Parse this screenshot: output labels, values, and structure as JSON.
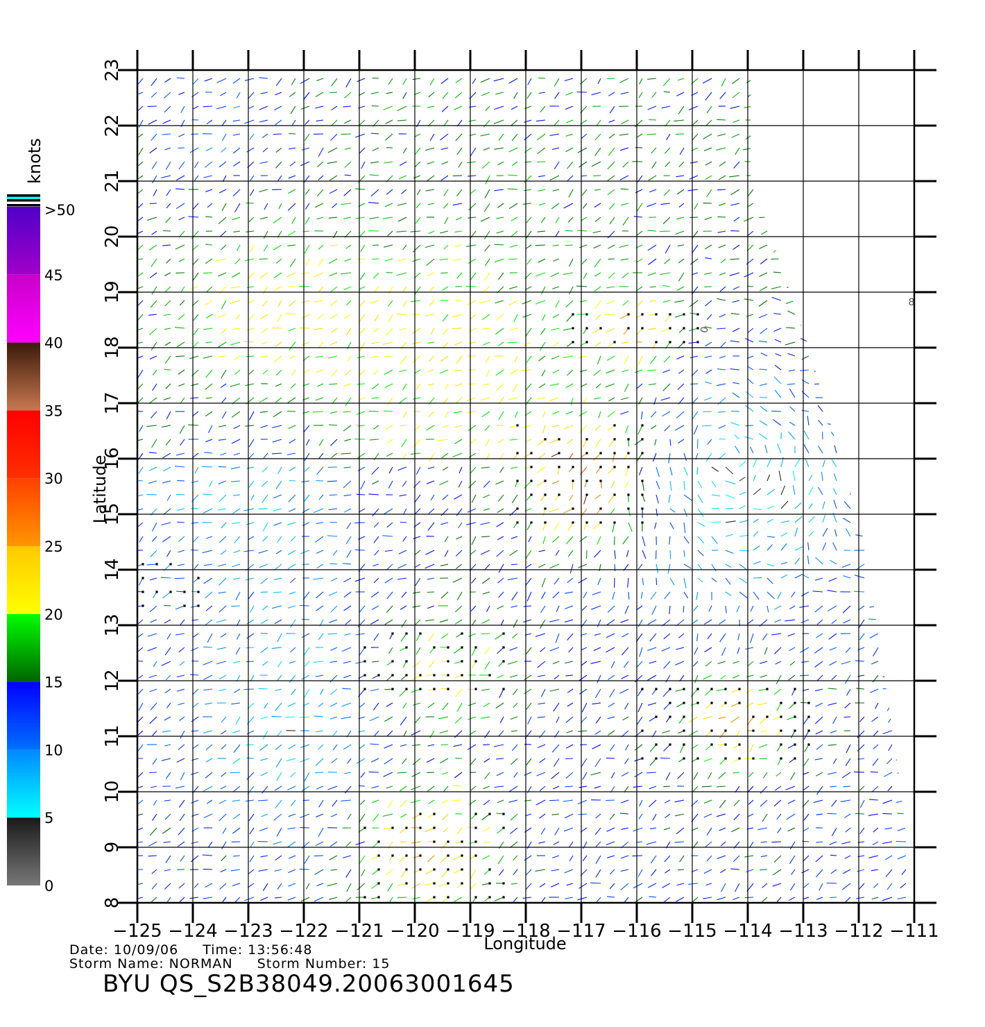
{
  "map": {
    "lon_range": [
      -125,
      -111
    ],
    "lat_range": [
      8,
      23
    ],
    "lon_ticks": [
      -125,
      -124,
      -123,
      -122,
      -121,
      -120,
      -119,
      -118,
      -117,
      -116,
      -115,
      -114,
      -113,
      -112,
      -111
    ],
    "lat_ticks": [
      8,
      9,
      10,
      11,
      12,
      13,
      14,
      15,
      16,
      17,
      18,
      19,
      20,
      21,
      22,
      23
    ],
    "lon_tick_labels": [
      "−125",
      "−124",
      "−123",
      "−122",
      "−121",
      "−120",
      "−119",
      "−118",
      "−117",
      "−116",
      "−115",
      "−114",
      "−113",
      "−112",
      "−111"
    ],
    "lat_tick_labels": [
      "8",
      "9",
      "10",
      "11",
      "12",
      "13",
      "14",
      "15",
      "16",
      "17",
      "18",
      "19",
      "20",
      "21",
      "22",
      "23"
    ],
    "xlabel": "Longitude",
    "ylabel": "Latitude",
    "grid": true,
    "swath_polygon_lonlat": [
      [
        -125,
        23
      ],
      [
        -113.95,
        23
      ],
      [
        -113.95,
        21.1
      ],
      [
        -112.9,
        18.0
      ],
      [
        -111.9,
        14.5
      ],
      [
        -111.3,
        10.5
      ],
      [
        -111.0,
        8.0
      ],
      [
        -125,
        8.0
      ]
    ],
    "map_marks": [
      "0",
      "8"
    ]
  },
  "legend": {
    "title": "knots",
    "labels": [
      ">50",
      "45",
      "40",
      "35",
      "30",
      "25",
      "20",
      "15",
      "10",
      "5",
      "0"
    ],
    "bands": [
      {
        "from": 0,
        "to": 5,
        "colors": [
          "#777777",
          "#1a1a1a"
        ]
      },
      {
        "from": 5,
        "to": 10,
        "colors": [
          "#00ffff",
          "#0088ff"
        ]
      },
      {
        "from": 10,
        "to": 15,
        "colors": [
          "#0070ff",
          "#0000ff"
        ]
      },
      {
        "from": 15,
        "to": 20,
        "colors": [
          "#006400",
          "#00ff00"
        ]
      },
      {
        "from": 20,
        "to": 25,
        "colors": [
          "#ffff00",
          "#ffc800"
        ]
      },
      {
        "from": 25,
        "to": 30,
        "colors": [
          "#ff9600",
          "#ff4000"
        ]
      },
      {
        "from": 30,
        "to": 35,
        "colors": [
          "#ff3000",
          "#ff0000"
        ]
      },
      {
        "from": 35,
        "to": 40,
        "colors": [
          "#c87850",
          "#3a1a0a"
        ]
      },
      {
        "from": 40,
        "to": 45,
        "colors": [
          "#ff00ff",
          "#c800c8"
        ]
      },
      {
        "from": 45,
        "to": 50,
        "colors": [
          "#a000c8",
          "#5000c8"
        ]
      }
    ]
  },
  "info": {
    "date_label": "Date: 10/09/06",
    "time_label": "Time: 13:56:48",
    "storm_name_label": "Storm Name: NORMAN",
    "storm_number_label": "Storm Number: 15",
    "product_id": "BYU QS_S2B38049.20063001645"
  },
  "wind_field": {
    "units": "knots",
    "regions": [
      {
        "area": "north-west, 19-23N 125-121W",
        "speed_range": [
          10,
          20
        ],
        "direction": "variable"
      },
      {
        "area": "central, 16-20N 121-117W",
        "speed_range": [
          17,
          25
        ],
        "direction": "from NE"
      },
      {
        "area": "rain-flagged band, 18-18.8N 117-115W",
        "speed_range": [
          28,
          38
        ],
        "flagged": true
      },
      {
        "area": "rain-flagged core, 14.8-16.6N 118-116W",
        "speed_range": [
          28,
          38
        ],
        "flagged": true
      },
      {
        "area": "eastern edge, 12-21N 115-112W",
        "speed_range": [
          5,
          14
        ],
        "direction": "cyclonic"
      },
      {
        "area": "rain-flagged band, 10.5-12N 116-113W",
        "speed_range": [
          22,
          35
        ],
        "flagged": true
      },
      {
        "area": "rain-flagged bands, 8-13N 121-118W",
        "speed_range": [
          22,
          34
        ],
        "flagged": true
      },
      {
        "area": "south-west, 8-14N 125-121W",
        "speed_range": [
          4,
          14
        ],
        "direction": "variable"
      }
    ]
  },
  "colors": {
    "grid": "#000000",
    "flag_marker": "#000000",
    "background": "#ffffff"
  }
}
